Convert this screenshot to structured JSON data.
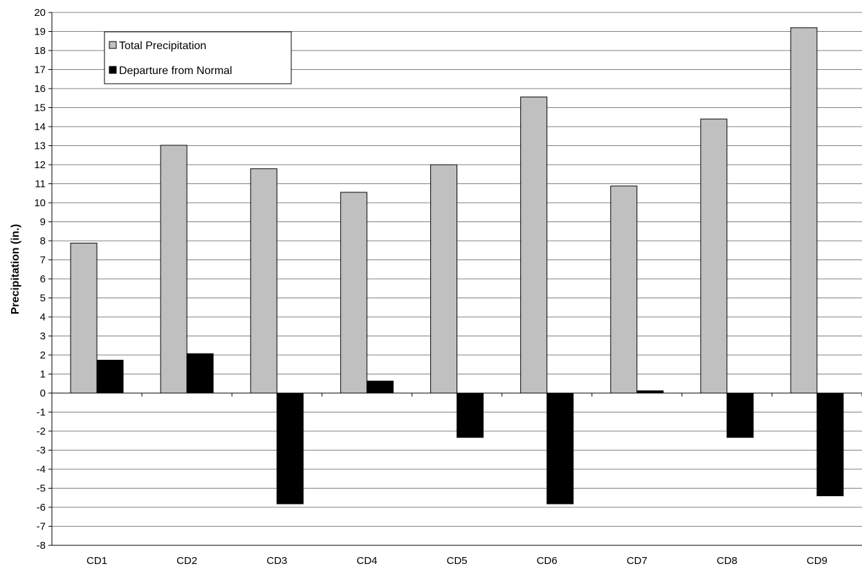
{
  "chart_data": {
    "type": "bar",
    "title": "",
    "xlabel": "",
    "ylabel": "Precipitation (in.)",
    "ylim": [
      -8,
      20
    ],
    "ytick_step": 1,
    "grid": true,
    "legend_position": "top-left",
    "categories": [
      "CD1",
      "CD2",
      "CD3",
      "CD4",
      "CD5",
      "CD6",
      "CD7",
      "CD8",
      "CD9"
    ],
    "series": [
      {
        "name": "Total Precipitation",
        "color": "#c0c0c0",
        "values": [
          7.88,
          13.02,
          11.79,
          10.55,
          12.0,
          15.56,
          10.88,
          14.4,
          19.2
        ]
      },
      {
        "name": "Departure from Normal",
        "color": "#000000",
        "values": [
          1.73,
          2.07,
          -5.82,
          0.63,
          -2.33,
          -5.82,
          0.12,
          -2.33,
          -5.4
        ]
      }
    ]
  }
}
